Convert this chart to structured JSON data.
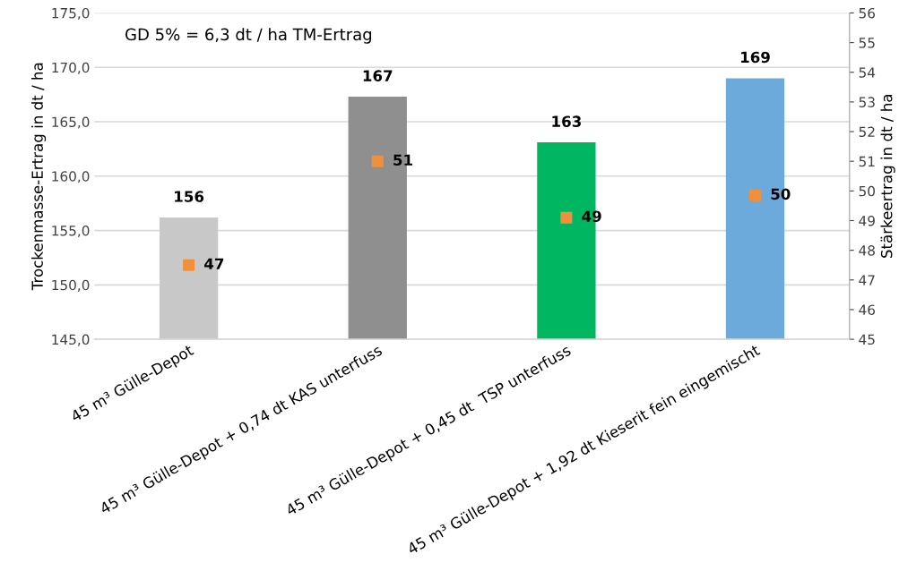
{
  "chart_data": {
    "type": "bar",
    "categories": [
      "45 m³ Gülle-Depot",
      "45 m³ Gülle-Depot + 0,74 dt KAS unterfuss",
      "45 m³ Gülle-Depot + 0,45 dt  TSP unterfuss",
      "45 m³ Gülle-Depot + 1,92 dt Kieserit fein eingemischt"
    ],
    "series": [
      {
        "colors": [
          "#c8c8c8",
          "#8f8f8f",
          "#00b661",
          "#6caadc"
        ],
        "values": [
          156.2,
          167.3,
          163.1,
          169.0
        ],
        "value_labels": [
          "156",
          "167",
          "163",
          "169"
        ]
      },
      {
        "type": "scatter",
        "axis": "y2",
        "color": "#f0903c",
        "marker": "square",
        "values": [
          47.5,
          51.0,
          49.1,
          49.85
        ],
        "value_labels": [
          "47",
          "51",
          "49",
          "50"
        ]
      }
    ],
    "ylabel": "Trockenmasse-Ertrag in dt / ha",
    "y2label": "Stärkeertrag in dt / ha",
    "ylim": [
      145,
      175
    ],
    "yticks": [
      {
        "value": 145,
        "label": "145,0"
      },
      {
        "value": 150,
        "label": "150,0"
      },
      {
        "value": 155,
        "label": "155,0"
      },
      {
        "value": 160,
        "label": "160,0"
      },
      {
        "value": 165,
        "label": "165,0"
      },
      {
        "value": 170,
        "label": "170,0"
      },
      {
        "value": 175,
        "label": "175,0"
      }
    ],
    "y2lim": [
      45,
      56
    ],
    "y2ticks": [
      45,
      46,
      47,
      48,
      49,
      50,
      51,
      52,
      53,
      54,
      55,
      56
    ],
    "annotations": [
      "GD 5% = 6,3 dt / ha TM-Ertrag"
    ],
    "grid": "y"
  }
}
